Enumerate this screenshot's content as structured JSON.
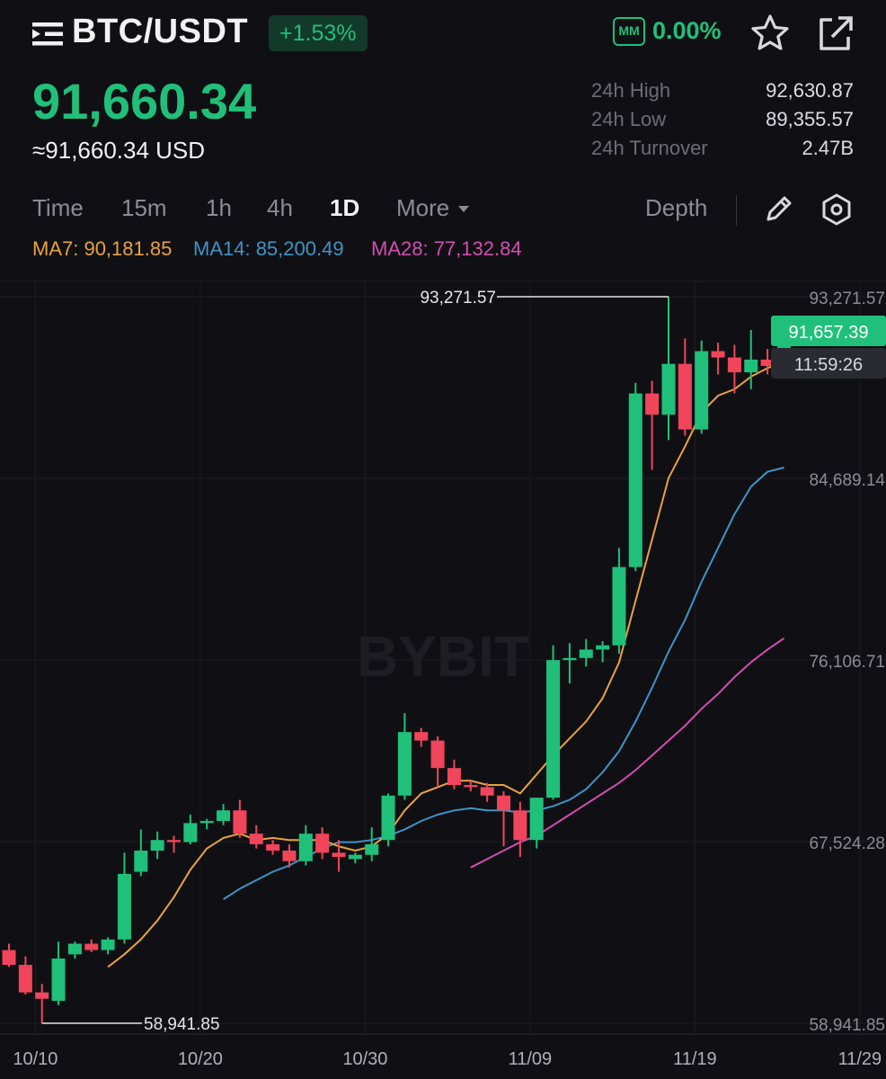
{
  "header": {
    "pair": "BTC/USDT",
    "change_pct": "+1.53%",
    "mm_label": "MM",
    "mm_value": "0.00%",
    "icons": [
      "menu-icon",
      "star-icon",
      "share-icon"
    ]
  },
  "price": {
    "last": "91,660.34",
    "usd": "≈91,660.34 USD"
  },
  "stats": [
    {
      "label": "24h High",
      "value": "92,630.87"
    },
    {
      "label": "24h Low",
      "value": "89,355.57"
    },
    {
      "label": "24h Turnover",
      "value": "2.47B"
    }
  ],
  "toolbar": {
    "timeframes": [
      "Time",
      "15m",
      "1h",
      "4h",
      "1D",
      "More"
    ],
    "active": "1D",
    "depth": "Depth",
    "icons": [
      "pencil-icon",
      "settings-icon"
    ]
  },
  "ma": {
    "ma7": "MA7: 90,181.85",
    "ma14": "MA14: 85,200.49",
    "ma28": "MA28: 77,132.84"
  },
  "colors": {
    "up": "#20c07a",
    "down": "#f0455b",
    "ma7": "#e8a33d",
    "ma14": "#3f94c5",
    "ma28": "#d14fb0",
    "background": "#101014"
  },
  "chart_data": {
    "type": "candlestick",
    "symbol": "BTC/USDT",
    "interval": "1D",
    "y_ticks": [
      "93,271.57",
      "84,689.14",
      "76,106.71",
      "67,524.28",
      "58,941.85"
    ],
    "x_ticks": [
      "10/10",
      "10/20",
      "10/30",
      "11/09",
      "11/19",
      "11/29"
    ],
    "ylim": [
      58941.85,
      93271.57
    ],
    "high_marker": "93,271.57",
    "low_marker": "58,941.85",
    "current_price_label": "91,657.39",
    "countdown_label": "11:59:26",
    "watermark": "BYBIT",
    "candles": [
      {
        "o": 62400,
        "h": 62700,
        "l": 61600,
        "c": 61700
      },
      {
        "o": 61700,
        "h": 62100,
        "l": 60300,
        "c": 60400
      },
      {
        "o": 60400,
        "h": 60800,
        "l": 58941.85,
        "c": 60100
      },
      {
        "o": 60000,
        "h": 62800,
        "l": 59800,
        "c": 62000
      },
      {
        "o": 62200,
        "h": 62800,
        "l": 62000,
        "c": 62700
      },
      {
        "o": 62700,
        "h": 62900,
        "l": 62300,
        "c": 62400
      },
      {
        "o": 62400,
        "h": 63000,
        "l": 62200,
        "c": 62900
      },
      {
        "o": 62900,
        "h": 67000,
        "l": 62700,
        "c": 66000
      },
      {
        "o": 66100,
        "h": 68100,
        "l": 65900,
        "c": 67100
      },
      {
        "o": 67100,
        "h": 68000,
        "l": 66700,
        "c": 67600
      },
      {
        "o": 67600,
        "h": 67800,
        "l": 67000,
        "c": 67500
      },
      {
        "o": 67500,
        "h": 68800,
        "l": 67400,
        "c": 68400
      },
      {
        "o": 68400,
        "h": 68600,
        "l": 68100,
        "c": 68500
      },
      {
        "o": 68500,
        "h": 69300,
        "l": 68300,
        "c": 69000
      },
      {
        "o": 69000,
        "h": 69500,
        "l": 67700,
        "c": 67900
      },
      {
        "o": 67900,
        "h": 68300,
        "l": 67200,
        "c": 67400
      },
      {
        "o": 67400,
        "h": 67600,
        "l": 66900,
        "c": 67100
      },
      {
        "o": 67100,
        "h": 67400,
        "l": 66300,
        "c": 66600
      },
      {
        "o": 66600,
        "h": 68300,
        "l": 66400,
        "c": 67900
      },
      {
        "o": 67900,
        "h": 68200,
        "l": 66700,
        "c": 67000
      },
      {
        "o": 67000,
        "h": 67600,
        "l": 66100,
        "c": 66800
      },
      {
        "o": 66700,
        "h": 67000,
        "l": 66500,
        "c": 66900
      },
      {
        "o": 66900,
        "h": 68200,
        "l": 66600,
        "c": 67400
      },
      {
        "o": 67600,
        "h": 69800,
        "l": 67300,
        "c": 69700
      },
      {
        "o": 69700,
        "h": 73600,
        "l": 69500,
        "c": 72700
      },
      {
        "o": 72700,
        "h": 72900,
        "l": 72000,
        "c": 72300
      },
      {
        "o": 72300,
        "h": 72500,
        "l": 70100,
        "c": 71000
      },
      {
        "o": 71000,
        "h": 71400,
        "l": 70000,
        "c": 70200
      },
      {
        "o": 70200,
        "h": 70400,
        "l": 69900,
        "c": 70100
      },
      {
        "o": 70100,
        "h": 70300,
        "l": 69400,
        "c": 69700
      },
      {
        "o": 69700,
        "h": 69900,
        "l": 67300,
        "c": 69000
      },
      {
        "o": 69000,
        "h": 69400,
        "l": 66800,
        "c": 67600
      },
      {
        "o": 67600,
        "h": 69600,
        "l": 67200,
        "c": 69600
      },
      {
        "o": 69600,
        "h": 76800,
        "l": 69500,
        "c": 76100
      },
      {
        "o": 76100,
        "h": 76900,
        "l": 75000,
        "c": 76200
      },
      {
        "o": 76200,
        "h": 77100,
        "l": 75800,
        "c": 76600
      },
      {
        "o": 76600,
        "h": 77000,
        "l": 76000,
        "c": 76800
      },
      {
        "o": 76800,
        "h": 81400,
        "l": 76400,
        "c": 80500
      },
      {
        "o": 80500,
        "h": 89200,
        "l": 80300,
        "c": 88700
      },
      {
        "o": 88700,
        "h": 89300,
        "l": 85100,
        "c": 87700
      },
      {
        "o": 87700,
        "h": 93271.57,
        "l": 86500,
        "c": 90100
      },
      {
        "o": 90100,
        "h": 91300,
        "l": 86700,
        "c": 87000
      },
      {
        "o": 87000,
        "h": 91200,
        "l": 86800,
        "c": 90700
      },
      {
        "o": 90700,
        "h": 91100,
        "l": 89600,
        "c": 90400
      },
      {
        "o": 90400,
        "h": 91000,
        "l": 88700,
        "c": 89700
      },
      {
        "o": 89700,
        "h": 91700,
        "l": 88900,
        "c": 90300
      },
      {
        "o": 90300,
        "h": 90800,
        "l": 89600,
        "c": 90000
      },
      {
        "o": 90000,
        "h": 91900,
        "l": 89600,
        "c": 91657.39
      }
    ],
    "ma7_values": [
      null,
      null,
      null,
      null,
      null,
      null,
      61600,
      62200,
      62900,
      63800,
      64900,
      66200,
      67200,
      67700,
      67900,
      67600,
      67700,
      67600,
      67600,
      67600,
      67300,
      67100,
      67300,
      67900,
      69000,
      69800,
      70100,
      70400,
      70400,
      70200,
      70200,
      69800,
      70700,
      71600,
      72400,
      73200,
      74300,
      76000,
      78900,
      81800,
      84700,
      86200,
      87800,
      88600,
      88900,
      89500,
      89900,
      90200
    ],
    "ma14_values": [
      null,
      null,
      null,
      null,
      null,
      null,
      null,
      null,
      null,
      null,
      null,
      null,
      null,
      64800,
      65300,
      65700,
      66100,
      66400,
      66800,
      67200,
      67500,
      67500,
      67600,
      67800,
      68100,
      68500,
      68800,
      69000,
      69100,
      69000,
      69000,
      68900,
      69000,
      69200,
      69500,
      70000,
      70800,
      71800,
      73200,
      74800,
      76500,
      78000,
      79800,
      81400,
      83000,
      84300,
      85000,
      85200
    ],
    "ma28_values": [
      null,
      null,
      null,
      null,
      null,
      null,
      null,
      null,
      null,
      null,
      null,
      null,
      null,
      null,
      null,
      null,
      null,
      null,
      null,
      null,
      null,
      null,
      null,
      null,
      null,
      null,
      null,
      null,
      66300,
      66700,
      67100,
      67500,
      67800,
      68300,
      68800,
      69300,
      69800,
      70300,
      70900,
      71600,
      72300,
      73000,
      73800,
      74500,
      75300,
      76000,
      76600,
      77132.84
    ]
  }
}
